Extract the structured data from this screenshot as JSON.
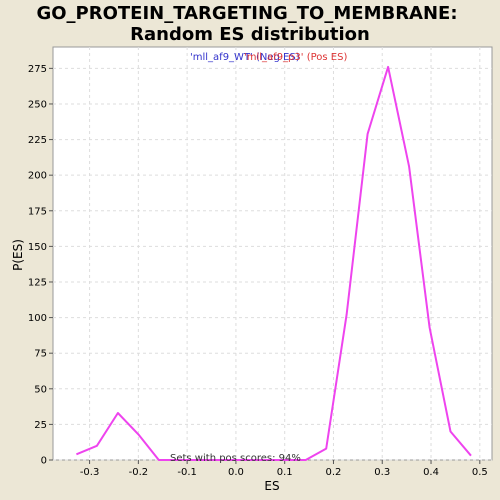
{
  "chart_data": {
    "type": "line",
    "title_line1": "GO_PROTEIN_TARGETING_TO_MEMBRANE:",
    "title_line2": "Random ES distribution",
    "xlabel": "ES",
    "ylabel": "P(ES)",
    "xlim": [
      -0.375,
      0.525
    ],
    "ylim": [
      0,
      290
    ],
    "xticks": [
      -0.3,
      -0.2,
      -0.1,
      0.0,
      0.1,
      0.2,
      0.3,
      0.4,
      0.5
    ],
    "xtick_labels": [
      "-0.3",
      "-0.2",
      "-0.1",
      "0.0",
      "0.1",
      "0.2",
      "0.3",
      "0.4",
      "0.5"
    ],
    "yticks": [
      0,
      25,
      50,
      75,
      100,
      125,
      150,
      175,
      200,
      225,
      250,
      275
    ],
    "ytick_labels": [
      "0",
      "25",
      "50",
      "75",
      "100",
      "125",
      "150",
      "175",
      "200",
      "225",
      "250",
      "275"
    ],
    "grid": true,
    "legend": [
      {
        "label": "'mll_af9_WT' (Neg ES)",
        "color": "#3333cc"
      },
      {
        "label": "'mll_af9_p3' (Pos ES)",
        "color": "#dd3333"
      }
    ],
    "annotation": "Sets with pos scores: 94%",
    "series": [
      {
        "color": "#ee44ee",
        "points": [
          [
            -0.327,
            4
          ],
          [
            -0.285,
            10
          ],
          [
            -0.242,
            33
          ],
          [
            -0.2,
            18
          ],
          [
            -0.158,
            0
          ],
          [
            -0.115,
            0
          ],
          [
            -0.073,
            0
          ],
          [
            -0.031,
            0
          ],
          [
            0.012,
            0
          ],
          [
            0.054,
            0
          ],
          [
            0.096,
            0
          ],
          [
            0.143,
            0
          ],
          [
            0.185,
            8
          ],
          [
            0.227,
            102
          ],
          [
            0.27,
            229
          ],
          [
            0.312,
            276
          ],
          [
            0.355,
            206
          ],
          [
            0.397,
            93
          ],
          [
            0.44,
            20
          ],
          [
            0.482,
            3
          ]
        ]
      }
    ]
  }
}
